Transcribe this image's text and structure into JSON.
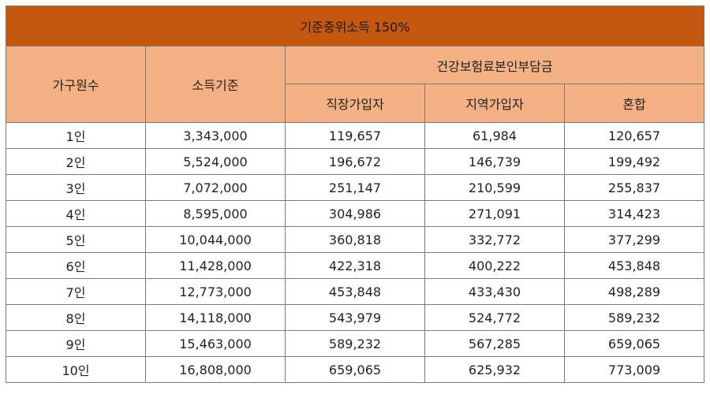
{
  "table": {
    "title": "기준중위소득 150%",
    "headers": {
      "household": "가구원수",
      "income": "소득기준",
      "premium_group": "건강보험료본인부담금",
      "employee": "직장가입자",
      "regional": "지역가입자",
      "mixed": "혼합"
    },
    "rows": [
      [
        "1인",
        "3,343,000",
        "119,657",
        "61,984",
        "120,657"
      ],
      [
        "2인",
        "5,524,000",
        "196,672",
        "146,739",
        "199,492"
      ],
      [
        "3인",
        "7,072,000",
        "251,147",
        "210,599",
        "255,837"
      ],
      [
        "4인",
        "8,595,000",
        "304,986",
        "271,091",
        "314,423"
      ],
      [
        "5인",
        "10,044,000",
        "360,818",
        "332,772",
        "377,299"
      ],
      [
        "6인",
        "11,428,000",
        "422,318",
        "400,222",
        "453,848"
      ],
      [
        "7인",
        "12,773,000",
        "453,848",
        "433,430",
        "498,289"
      ],
      [
        "8인",
        "14,118,000",
        "543,979",
        "524,772",
        "589,232"
      ],
      [
        "9인",
        "15,463,000",
        "589,232",
        "567,285",
        "659,065"
      ],
      [
        "10인",
        "16,808,000",
        "659,065",
        "625,932",
        "773,009"
      ]
    ]
  },
  "colors": {
    "title_bg": "#c4580f",
    "header_bg": "#f4b183",
    "border": "#7a7a7a"
  }
}
